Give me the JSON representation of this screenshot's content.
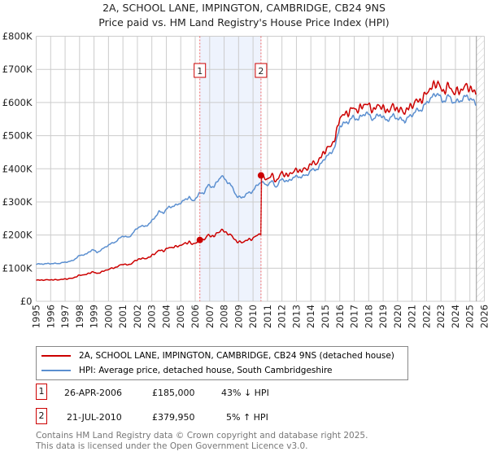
{
  "title_line1": "2A, SCHOOL LANE, IMPINGTON, CAMBRIDGE, CB24 9NS",
  "title_line2": "Price paid vs. HM Land Registry's House Price Index (HPI)",
  "chart_data": {
    "type": "line",
    "xlim": [
      1995,
      2026
    ],
    "ylim": [
      0,
      800000
    ],
    "yticks": [
      0,
      100000,
      200000,
      300000,
      400000,
      500000,
      600000,
      700000,
      800000
    ],
    "ytick_labels": [
      "£0",
      "£100K",
      "£200K",
      "£300K",
      "£400K",
      "£500K",
      "£600K",
      "£700K",
      "£800K"
    ],
    "xticks": [
      "1995",
      "1996",
      "1997",
      "1998",
      "1999",
      "2000",
      "2001",
      "2002",
      "2003",
      "2004",
      "2005",
      "2006",
      "2007",
      "2008",
      "2009",
      "2010",
      "2011",
      "2012",
      "2013",
      "2014",
      "2015",
      "2016",
      "2017",
      "2018",
      "2019",
      "2020",
      "2021",
      "2022",
      "2023",
      "2024",
      "2025",
      "2026"
    ],
    "grid": true,
    "shaded_period": [
      2006.32,
      2010.55
    ],
    "data_end": 2025.45,
    "series": [
      {
        "name": "HPI: Average price, detached house, South Cambridgeshire",
        "color": "#5b8fd0",
        "points": [
          [
            1995,
            112000
          ],
          [
            1995.5,
            113000
          ],
          [
            1996,
            114000
          ],
          [
            1996.5,
            114000
          ],
          [
            1997,
            118000
          ],
          [
            1997.5,
            122000
          ],
          [
            1998,
            138000
          ],
          [
            1998.5,
            143000
          ],
          [
            1998.9,
            157000
          ],
          [
            1999.2,
            147000
          ],
          [
            1999.6,
            158000
          ],
          [
            2000,
            170000
          ],
          [
            2000.5,
            180000
          ],
          [
            2001,
            198000
          ],
          [
            2001.4,
            192000
          ],
          [
            2001.8,
            212000
          ],
          [
            2002.2,
            228000
          ],
          [
            2002.5,
            225000
          ],
          [
            2002.9,
            237000
          ],
          [
            2003.5,
            270000
          ],
          [
            2003.8,
            268000
          ],
          [
            2004.2,
            285000
          ],
          [
            2004.6,
            288000
          ],
          [
            2005.1,
            300000
          ],
          [
            2005.6,
            316000
          ],
          [
            2005.8,
            300000
          ],
          [
            2006.3,
            325000
          ],
          [
            2006.6,
            328000
          ],
          [
            2006.9,
            350000
          ],
          [
            2007.3,
            345000
          ],
          [
            2007.8,
            380000
          ],
          [
            2008.1,
            365000
          ],
          [
            2008.4,
            355000
          ],
          [
            2008.9,
            316000
          ],
          [
            2009.2,
            312000
          ],
          [
            2009.6,
            325000
          ],
          [
            2009.9,
            330000
          ],
          [
            2010.3,
            350000
          ],
          [
            2010.55,
            362000
          ],
          [
            2010.9,
            350000
          ],
          [
            2011.3,
            362000
          ],
          [
            2011.6,
            345000
          ],
          [
            2012,
            370000
          ],
          [
            2012.4,
            360000
          ],
          [
            2012.8,
            375000
          ],
          [
            2013.3,
            376000
          ],
          [
            2013.7,
            380000
          ],
          [
            2014,
            395000
          ],
          [
            2014.5,
            400000
          ],
          [
            2014.9,
            430000
          ],
          [
            2015.2,
            440000
          ],
          [
            2015.5,
            455000
          ],
          [
            2015.7,
            470000
          ],
          [
            2016,
            530000
          ],
          [
            2016.5,
            540000
          ],
          [
            2016.9,
            555000
          ],
          [
            2017.3,
            550000
          ],
          [
            2017.8,
            570000
          ],
          [
            2018.3,
            550000
          ],
          [
            2018.8,
            565000
          ],
          [
            2019.2,
            545000
          ],
          [
            2019.7,
            560000
          ],
          [
            2020.1,
            550000
          ],
          [
            2020.5,
            545000
          ],
          [
            2020.9,
            560000
          ],
          [
            2021.3,
            575000
          ],
          [
            2021.7,
            580000
          ],
          [
            2022.1,
            605000
          ],
          [
            2022.5,
            620000
          ],
          [
            2022.8,
            630000
          ],
          [
            2023.1,
            600000
          ],
          [
            2023.5,
            620000
          ],
          [
            2023.9,
            600000
          ],
          [
            2024.3,
            605000
          ],
          [
            2024.8,
            620000
          ],
          [
            2025.2,
            605000
          ],
          [
            2025.45,
            595000
          ]
        ]
      },
      {
        "name": "2A, SCHOOL LANE, IMPINGTON, CAMBRIDGE, CB24 9NS (detached house)",
        "color": "#cc0000",
        "scale_before_sale2": 0.569,
        "scale_after_sale2": 1.05
      }
    ],
    "sales": [
      {
        "label": "1",
        "x": 2006.32,
        "y": 185000
      },
      {
        "label": "2",
        "x": 2010.55,
        "y": 379950
      }
    ]
  },
  "legend": [
    {
      "label": "2A, SCHOOL LANE, IMPINGTON, CAMBRIDGE, CB24 9NS (detached house)",
      "color": "#cc0000"
    },
    {
      "label": "HPI: Average price, detached house, South Cambridgeshire",
      "color": "#5b8fd0"
    }
  ],
  "transactions": [
    {
      "num": "1",
      "date": "26-APR-2006",
      "price": "£185,000",
      "hpi": "43% ↓ HPI"
    },
    {
      "num": "2",
      "date": "21-JUL-2010",
      "price": "£379,950",
      "hpi": "5% ↑ HPI"
    }
  ],
  "footer_line1": "Contains HM Land Registry data © Crown copyright and database right 2025.",
  "footer_line2": "This data is licensed under the Open Government Licence v3.0."
}
